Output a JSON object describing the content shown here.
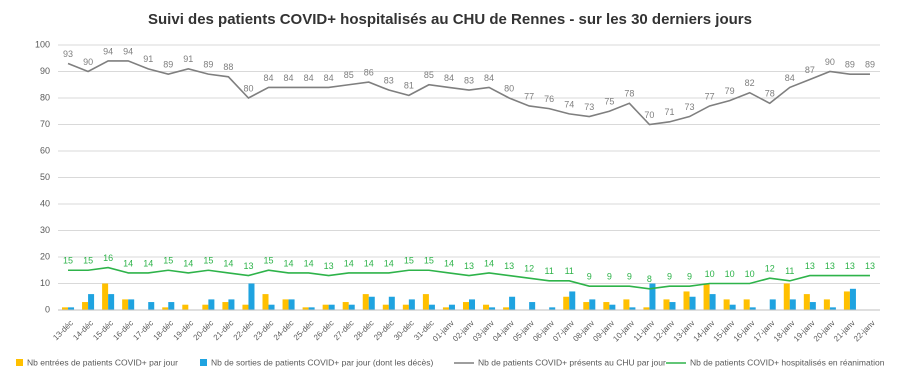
{
  "chart_data": {
    "type": "combo",
    "title": "Suivi des patients COVID+ hospitalisés au CHU de Rennes - sur les 30 derniers jours",
    "categories": [
      "13-déc",
      "14-déc",
      "15-déc",
      "16-déc",
      "17-déc",
      "18-déc",
      "19-déc",
      "20-déc",
      "21-déc",
      "22-déc",
      "23-déc",
      "24-déc",
      "25-déc",
      "26-déc",
      "27-déc",
      "28-déc",
      "29-déc",
      "30-déc",
      "31-déc",
      "01-janv",
      "02-janv",
      "03-janv",
      "04-janv",
      "05-janv",
      "06-janv",
      "07-janv",
      "08-janv",
      "09-janv",
      "10-janv",
      "11-janv",
      "12-janv",
      "13-janv",
      "14-janv",
      "15-janv",
      "16-janv",
      "17-janv",
      "18-janv",
      "19-janv",
      "20-janv",
      "21-janv",
      "22-janv"
    ],
    "series": [
      {
        "name": "Nb entrées de patients COVID+ par jour",
        "type": "bar",
        "color": "#ffc000",
        "values": [
          1,
          3,
          10,
          4,
          0,
          1,
          2,
          2,
          3,
          2,
          6,
          4,
          1,
          2,
          3,
          6,
          2,
          2,
          6,
          1,
          3,
          2,
          1,
          0,
          0,
          5,
          3,
          3,
          4,
          1,
          4,
          7,
          10,
          4,
          4,
          0,
          10,
          6,
          4,
          7,
          0
        ]
      },
      {
        "name": "Nb de sorties de patients COVID+ par jour (dont les décès)",
        "type": "bar",
        "color": "#1fa3e0",
        "values": [
          1,
          6,
          6,
          4,
          3,
          3,
          0,
          4,
          4,
          10,
          2,
          4,
          1,
          2,
          2,
          5,
          5,
          4,
          2,
          2,
          4,
          1,
          5,
          3,
          1,
          7,
          4,
          2,
          1,
          10,
          3,
          5,
          6,
          2,
          1,
          4,
          4,
          3,
          1,
          8,
          0
        ]
      },
      {
        "name": "Nb de patients COVID+ présents au CHU par jour",
        "type": "line",
        "color": "#7f7f7f",
        "values": [
          93,
          90,
          94,
          94,
          91,
          89,
          91,
          89,
          88,
          80,
          84,
          84,
          84,
          84,
          85,
          86,
          83,
          81,
          85,
          84,
          83,
          84,
          80,
          77,
          76,
          74,
          73,
          75,
          78,
          70,
          71,
          73,
          77,
          79,
          82,
          78,
          84,
          87,
          90,
          89,
          89
        ]
      },
      {
        "name": "Nb de patients COVID+ hospitalisés en réanimation",
        "type": "line",
        "color": "#2eb34a",
        "values": [
          15,
          15,
          16,
          14,
          14,
          15,
          14,
          15,
          14,
          13,
          15,
          14,
          14,
          13,
          14,
          14,
          14,
          15,
          15,
          14,
          13,
          14,
          13,
          12,
          11,
          11,
          9,
          9,
          9,
          8,
          9,
          9,
          10,
          10,
          10,
          12,
          11,
          13,
          13,
          13,
          13
        ]
      }
    ],
    "ylim": [
      0,
      100
    ],
    "yticks": [
      0,
      10,
      20,
      30,
      40,
      50,
      60,
      70,
      80,
      90,
      100
    ],
    "grid": true
  }
}
